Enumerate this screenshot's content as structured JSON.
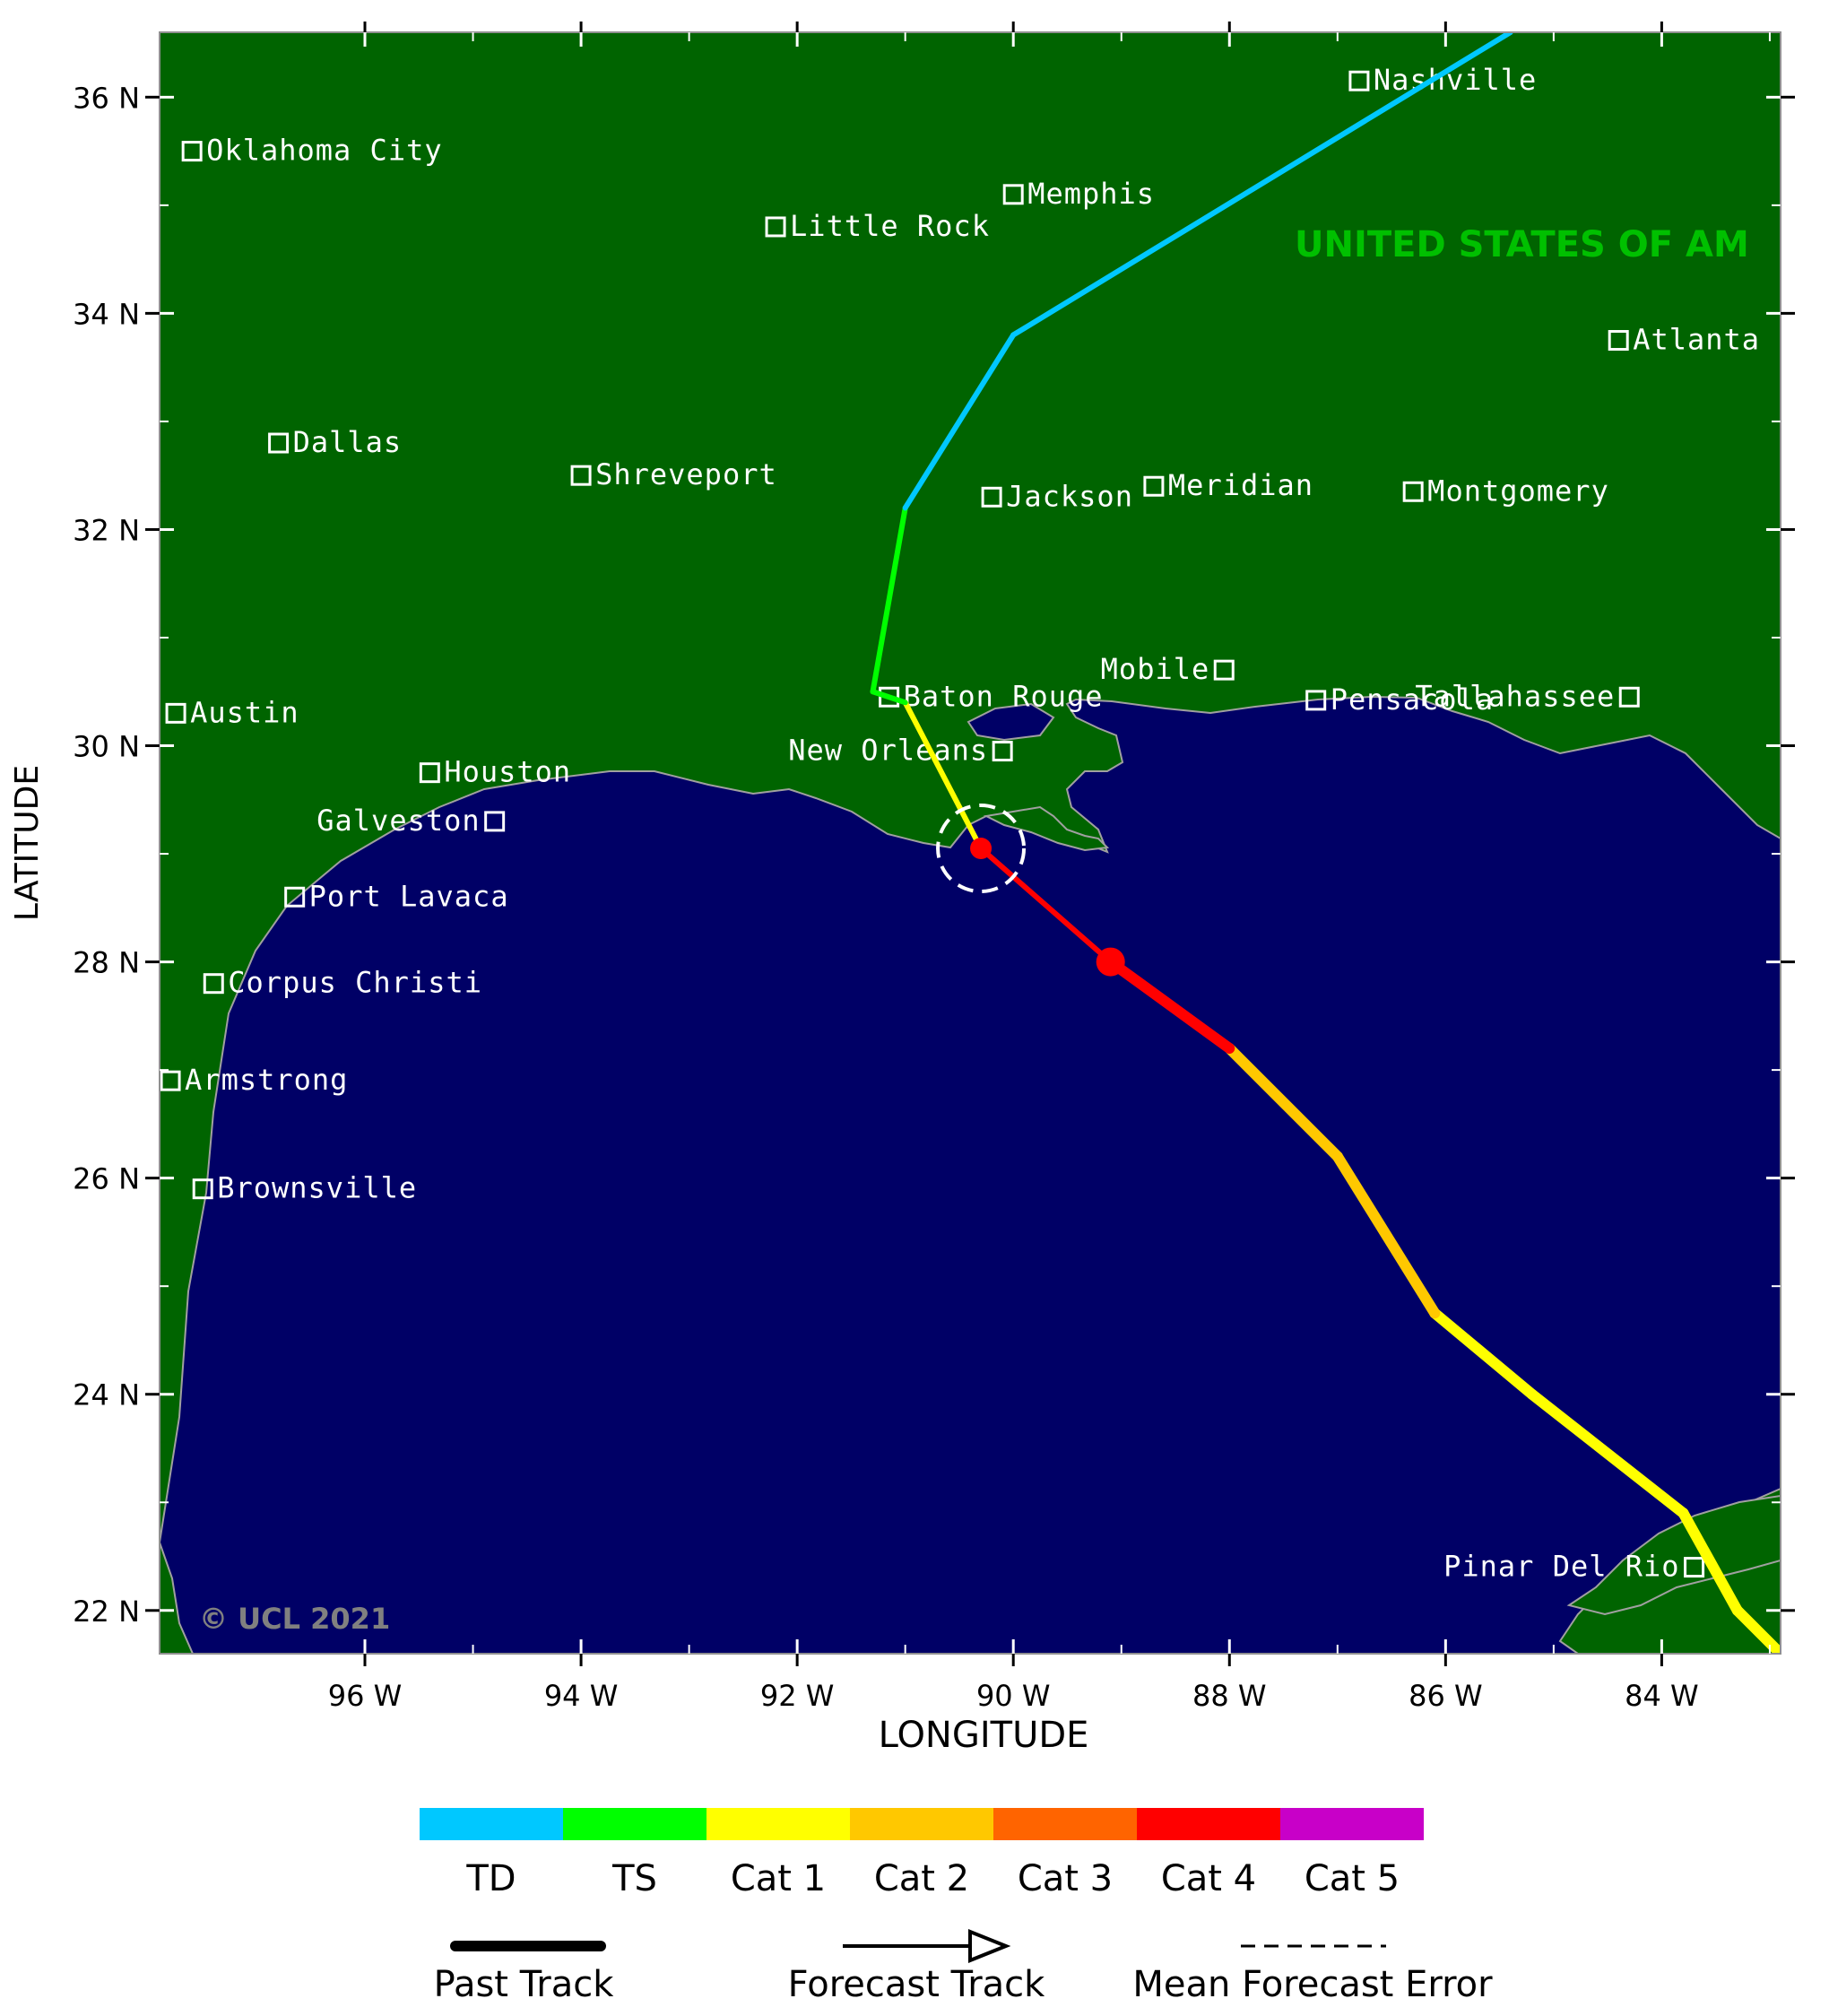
{
  "map": {
    "lon_range": [
      -97.9,
      -82.9
    ],
    "lat_range": [
      21.6,
      36.6
    ],
    "y_axis_title": "LATITUDE",
    "x_axis_title": "LONGITUDE",
    "lat_ticks": [
      {
        "value": 36,
        "label": "36 N"
      },
      {
        "value": 34,
        "label": "34 N"
      },
      {
        "value": 32,
        "label": "32 N"
      },
      {
        "value": 30,
        "label": "30 N"
      },
      {
        "value": 28,
        "label": "28 N"
      },
      {
        "value": 26,
        "label": "26 N"
      },
      {
        "value": 24,
        "label": "24 N"
      },
      {
        "value": 22,
        "label": "22 N"
      }
    ],
    "lon_ticks": [
      {
        "value": -96,
        "label": "96 W"
      },
      {
        "value": -94,
        "label": "94 W"
      },
      {
        "value": -92,
        "label": "92 W"
      },
      {
        "value": -90,
        "label": "90 W"
      },
      {
        "value": -88,
        "label": "88 W"
      },
      {
        "value": -86,
        "label": "86 W"
      },
      {
        "value": -84,
        "label": "84 W"
      }
    ],
    "country_label": "UNITED STATES OF AM",
    "copyright": "© UCL 2021",
    "colors": {
      "land": "#006400",
      "sea": "#000066",
      "coast": "#a0a0a0",
      "country_label": "#00c000"
    },
    "cities": [
      {
        "name": "Nashville",
        "lon": -86.8,
        "lat": 36.15,
        "side": "right"
      },
      {
        "name": "Oklahoma City",
        "lon": -97.6,
        "lat": 35.5,
        "side": "right"
      },
      {
        "name": "Memphis",
        "lon": -90.0,
        "lat": 35.1,
        "side": "right"
      },
      {
        "name": "Little Rock",
        "lon": -92.2,
        "lat": 34.8,
        "side": "right"
      },
      {
        "name": "Atlanta",
        "lon": -84.4,
        "lat": 33.75,
        "side": "right"
      },
      {
        "name": "Dallas",
        "lon": -96.8,
        "lat": 32.8,
        "side": "right"
      },
      {
        "name": "Shreveport",
        "lon": -94.0,
        "lat": 32.5,
        "side": "right"
      },
      {
        "name": "Jackson",
        "lon": -90.2,
        "lat": 32.3,
        "side": "right"
      },
      {
        "name": "Meridian",
        "lon": -88.7,
        "lat": 32.4,
        "side": "right"
      },
      {
        "name": "Montgomery",
        "lon": -86.3,
        "lat": 32.35,
        "side": "right"
      },
      {
        "name": "Baton Rouge",
        "lon": -91.15,
        "lat": 30.45,
        "side": "right"
      },
      {
        "name": "Mobile",
        "lon": -88.05,
        "lat": 30.7,
        "side": "left"
      },
      {
        "name": "Pensacola",
        "lon": -87.2,
        "lat": 30.42,
        "side": "right"
      },
      {
        "name": "Tallahassee",
        "lon": -84.3,
        "lat": 30.45,
        "side": "left"
      },
      {
        "name": "Austin",
        "lon": -97.75,
        "lat": 30.3,
        "side": "right"
      },
      {
        "name": "New Orleans",
        "lon": -90.1,
        "lat": 29.95,
        "side": "left"
      },
      {
        "name": "Houston",
        "lon": -95.4,
        "lat": 29.75,
        "side": "right"
      },
      {
        "name": "Galveston",
        "lon": -94.8,
        "lat": 29.3,
        "side": "left"
      },
      {
        "name": "Port Lavaca",
        "lon": -96.65,
        "lat": 28.6,
        "side": "right"
      },
      {
        "name": "Corpus Christi",
        "lon": -97.4,
        "lat": 27.8,
        "side": "right"
      },
      {
        "name": "Armstrong",
        "lon": -97.8,
        "lat": 26.9,
        "side": "right"
      },
      {
        "name": "Brownsville",
        "lon": -97.5,
        "lat": 25.9,
        "side": "right"
      },
      {
        "name": "Pinar Del Rio",
        "lon": -83.7,
        "lat": 22.4,
        "side": "left"
      }
    ],
    "past_track": [
      {
        "lon": -82.9,
        "lat": 21.6,
        "category": "TS"
      },
      {
        "lon": -83.3,
        "lat": 22.0,
        "category": "Cat 1"
      },
      {
        "lon": -83.8,
        "lat": 22.9,
        "category": "Cat 1"
      },
      {
        "lon": -85.2,
        "lat": 24.0,
        "category": "Cat 1"
      },
      {
        "lon": -86.1,
        "lat": 24.75,
        "category": "Cat 1"
      },
      {
        "lon": -87.0,
        "lat": 26.2,
        "category": "Cat 2"
      },
      {
        "lon": -88.0,
        "lat": 27.2,
        "category": "Cat 2"
      },
      {
        "lon": -89.1,
        "lat": 28.0,
        "category": "Cat 4"
      }
    ],
    "forecast_track": [
      {
        "lon": -89.1,
        "lat": 28.0,
        "category": "Cat 4"
      },
      {
        "lon": -90.3,
        "lat": 29.05,
        "category": "Cat 4"
      },
      {
        "lon": -91.0,
        "lat": 30.4,
        "category": "Cat 1"
      },
      {
        "lon": -91.0,
        "lat": 30.4,
        "category": "Cat 1"
      },
      {
        "lon": -91.3,
        "lat": 30.5,
        "category": "TS"
      },
      {
        "lon": -91.0,
        "lat": 32.2,
        "category": "TS"
      },
      {
        "lon": -90.0,
        "lat": 33.8,
        "category": "TD"
      },
      {
        "lon": -85.4,
        "lat": 36.6,
        "category": "TD"
      }
    ],
    "current_position": {
      "lon": -89.1,
      "lat": 28.0
    },
    "forecast_points": [
      {
        "lon": -90.3,
        "lat": 29.05
      }
    ],
    "error_circle": {
      "lon": -90.3,
      "lat": 29.05
    }
  },
  "legend": {
    "categories": [
      {
        "label": "TD",
        "color": "#00c8ff"
      },
      {
        "label": "TS",
        "color": "#00ff00"
      },
      {
        "label": "Cat 1",
        "color": "#ffff00"
      },
      {
        "label": "Cat 2",
        "color": "#ffc800"
      },
      {
        "label": "Cat 3",
        "color": "#ff6400"
      },
      {
        "label": "Cat 4",
        "color": "#ff0000"
      },
      {
        "label": "Cat 5",
        "color": "#c800c8"
      }
    ],
    "past_track_label": "Past Track",
    "forecast_track_label": "Forecast Track",
    "mean_error_label": "Mean Forecast Error"
  }
}
